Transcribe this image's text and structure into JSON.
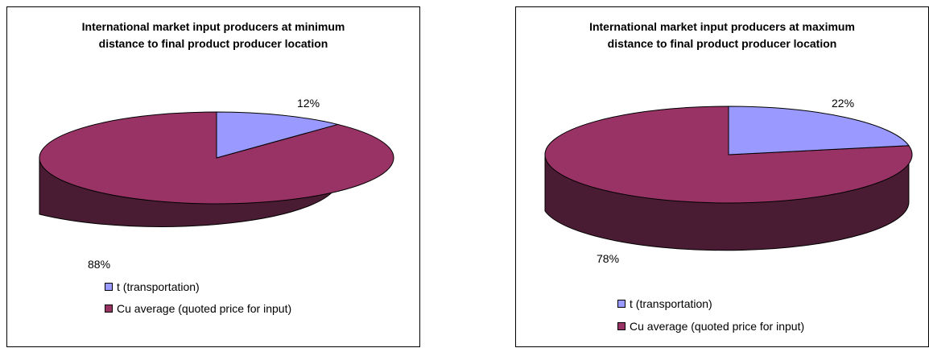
{
  "colors": {
    "slice_a": "#9999FF",
    "slice_b": "#993366",
    "side_b": "#4A1C33",
    "side_a": "#4D4D80"
  },
  "chart_data": [
    {
      "type": "pie",
      "title_lines": [
        "International market input producers at minimum",
        "distance to final product producer location"
      ],
      "categories": [
        "t (transportation)",
        "Cu average (quoted price for input)"
      ],
      "values": [
        12,
        88
      ],
      "labels": [
        "12%",
        "88%"
      ],
      "legend_position": "bottom"
    },
    {
      "type": "pie",
      "title_lines": [
        "International market input producers at maximum",
        "distance to final product producer location"
      ],
      "categories": [
        "t (transportation)",
        "Cu average (quoted price for input)"
      ],
      "values": [
        22,
        78
      ],
      "labels": [
        "22%",
        "78%"
      ],
      "legend_position": "bottom"
    }
  ]
}
